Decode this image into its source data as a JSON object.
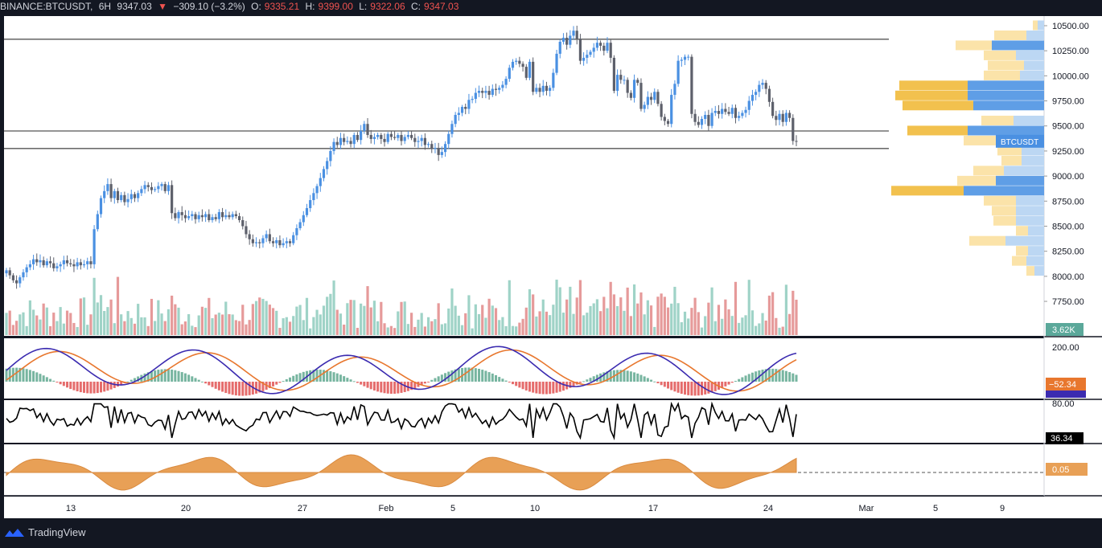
{
  "header": {
    "exchange_symbol": "BINANCE:BTCUSDT,",
    "interval": "6H",
    "last": "9347.03",
    "change": "−309.10 (−3.2%)",
    "o_label": "O:",
    "o_value": "9335.21",
    "h_label": "H:",
    "h_value": "9399.00",
    "l_label": "L:",
    "l_value": "9322.06",
    "c_label": "C:",
    "c_value": "9347.03"
  },
  "brand": {
    "name": "TradingView"
  },
  "colors": {
    "up": "#4a90e2",
    "down": "#5d606b",
    "vol_up": "#9fd3c7",
    "vol_down": "#e69a9a",
    "macd": "#3b2bb0",
    "signal": "#e8772e",
    "hist_up": "#5fa88f",
    "hist_down": "#e05252",
    "osc": "#e8a056"
  },
  "chart_data": {
    "type": "candlestick",
    "symbol": "BTCUSDT",
    "price_range": [
      7550,
      10580
    ],
    "y_ticks": [
      "10500.00",
      "10250.00",
      "10000.00",
      "9750.00",
      "9500.00",
      "9250.00",
      "9000.00",
      "8750.00",
      "8500.00",
      "8250.00",
      "8000.00",
      "7750.00"
    ],
    "x_ticks": [
      "13",
      "20",
      "27",
      "Feb",
      "5",
      "10",
      "17",
      "24",
      "Mar",
      "5",
      "9"
    ],
    "horizontal_lines": [
      10365,
      9450,
      9275
    ],
    "close_series": [
      8060,
      8010,
      7960,
      7930,
      7990,
      8040,
      8090,
      8120,
      8170,
      8140,
      8160,
      8110,
      8150,
      8130,
      8080,
      8100,
      8120,
      8160,
      8130,
      8120,
      8100,
      8140,
      8110,
      8120,
      8150,
      8120,
      8470,
      8620,
      8780,
      8850,
      8920,
      8780,
      8850,
      8760,
      8810,
      8740,
      8770,
      8820,
      8780,
      8830,
      8870,
      8910,
      8890,
      8860,
      8870,
      8900,
      8920,
      8850,
      8910,
      8630,
      8580,
      8640,
      8610,
      8580,
      8600,
      8620,
      8570,
      8610,
      8590,
      8620,
      8560,
      8590,
      8570,
      8640,
      8590,
      8610,
      8590,
      8620,
      8600,
      8560,
      8500,
      8420,
      8370,
      8330,
      8340,
      8330,
      8380,
      8420,
      8350,
      8330,
      8360,
      8310,
      8330,
      8350,
      8330,
      8410,
      8480,
      8540,
      8610,
      8680,
      8760,
      8830,
      8900,
      8980,
      9070,
      9150,
      9250,
      9340,
      9310,
      9380,
      9340,
      9350,
      9320,
      9410,
      9360,
      9450,
      9520,
      9410,
      9370,
      9390,
      9410,
      9370,
      9340,
      9420,
      9390,
      9380,
      9410,
      9350,
      9390,
      9410,
      9380,
      9340,
      9350,
      9380,
      9310,
      9320,
      9270,
      9280,
      9210,
      9240,
      9320,
      9420,
      9520,
      9610,
      9630,
      9690,
      9670,
      9760,
      9770,
      9830,
      9850,
      9830,
      9850,
      9810,
      9870,
      9860,
      9880,
      9910,
      9970,
      10080,
      10140,
      10150,
      10120,
      10090,
      9980,
      10140,
      9840,
      9880,
      9840,
      9900,
      9850,
      9880,
      10030,
      10220,
      10340,
      10380,
      10310,
      10400,
      10450,
      10370,
      10150,
      10180,
      10210,
      10240,
      10280,
      10330,
      10300,
      10250,
      10330,
      10180,
      9850,
      10010,
      9960,
      9960,
      9830,
      9780,
      9960,
      9930,
      9670,
      9710,
      9790,
      9760,
      9840,
      9720,
      9590,
      9550,
      9520,
      9810,
      9920,
      10150,
      10160,
      10190,
      10190,
      9620,
      9540,
      9510,
      9570,
      9610,
      9500,
      9630,
      9650,
      9620,
      9670,
      9640,
      9620,
      9680,
      9580,
      9600,
      9630,
      9660,
      9750,
      9810,
      9840,
      9910,
      9930,
      9870,
      9740,
      9600,
      9560,
      9620,
      9540,
      9630,
      9580,
      9350,
      9347
    ],
    "volume_scale": "3.62K",
    "current_price_label": "BTCUSDT",
    "volume_profile": [
      {
        "price": 10500,
        "buy": 6,
        "sell": 8
      },
      {
        "price": 10400,
        "buy": 40,
        "sell": 22
      },
      {
        "price": 10300,
        "buy": 45,
        "sell": 65
      },
      {
        "price": 10200,
        "buy": 40,
        "sell": 35
      },
      {
        "price": 10100,
        "buy": 45,
        "sell": 25
      },
      {
        "price": 10000,
        "buy": 45,
        "sell": 30
      },
      {
        "price": 9900,
        "buy": 85,
        "sell": 95
      },
      {
        "price": 9800,
        "buy": 90,
        "sell": 95
      },
      {
        "price": 9700,
        "buy": 88,
        "sell": 88
      },
      {
        "price": 9550,
        "buy": 40,
        "sell": 38
      },
      {
        "price": 9450,
        "buy": 75,
        "sell": 95
      },
      {
        "price": 9350,
        "buy": 45,
        "sell": 55
      },
      {
        "price": 9250,
        "buy": 30,
        "sell": 28
      },
      {
        "price": 9150,
        "buy": 25,
        "sell": 28
      },
      {
        "price": 9050,
        "buy": 38,
        "sell": 50
      },
      {
        "price": 8950,
        "buy": 48,
        "sell": 60
      },
      {
        "price": 8850,
        "buy": 90,
        "sell": 100
      },
      {
        "price": 8750,
        "buy": 40,
        "sell": 35
      },
      {
        "price": 8650,
        "buy": 30,
        "sell": 35
      },
      {
        "price": 8550,
        "buy": 28,
        "sell": 35
      },
      {
        "price": 8450,
        "buy": 15,
        "sell": 20
      },
      {
        "price": 8350,
        "buy": 45,
        "sell": 48
      },
      {
        "price": 8250,
        "buy": 15,
        "sell": 20
      },
      {
        "price": 8150,
        "buy": 18,
        "sell": 22
      },
      {
        "price": 8050,
        "buy": 10,
        "sell": 12
      }
    ],
    "macd": {
      "ticks": [
        "200.00",
        "0.00"
      ],
      "value_label": "−52.34",
      "signal_label": "−38.1"
    },
    "rsi": {
      "ticks": [
        "80.00"
      ],
      "value_label": "36.34"
    },
    "osc": {
      "value_label": "0.05"
    }
  }
}
